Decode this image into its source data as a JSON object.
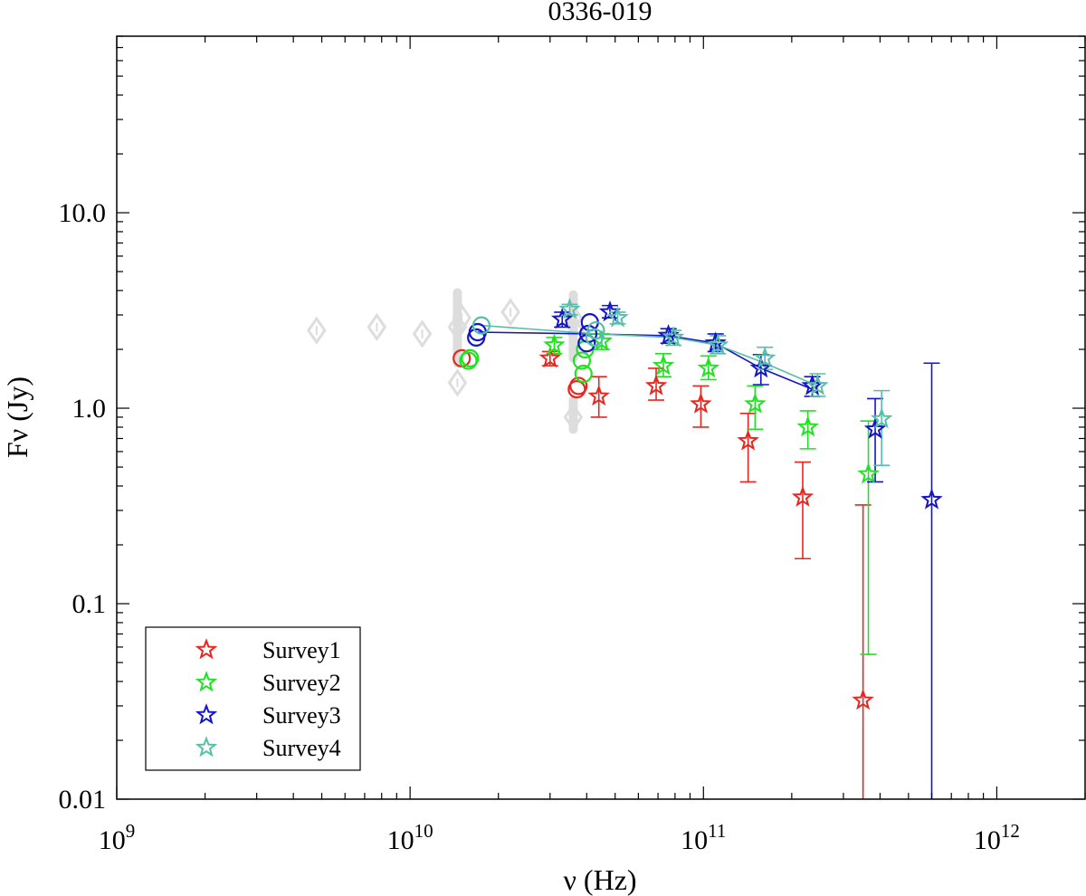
{
  "chart_data": {
    "type": "scatter",
    "title": "0336-019",
    "xlabel": "ν (Hz)",
    "ylabel": "Fν (Jy)",
    "x_scale": "log",
    "y_scale": "log",
    "xlim": [
      1000000000.0,
      2000000000000.0
    ],
    "ylim": [
      0.01,
      80
    ],
    "grid": false,
    "legend_position": "bottom-left",
    "x_ticks": [
      {
        "value": 1000000000.0,
        "base": "10",
        "exp": "9"
      },
      {
        "value": 10000000000.0,
        "base": "10",
        "exp": "10"
      },
      {
        "value": 100000000000.0,
        "base": "10",
        "exp": "11"
      },
      {
        "value": 1000000000000.0,
        "base": "10",
        "exp": "12"
      }
    ],
    "y_ticks": [
      {
        "value": 0.01,
        "label": "0.01"
      },
      {
        "value": 0.1,
        "label": "0.1"
      },
      {
        "value": 1,
        "label": "1.0"
      },
      {
        "value": 10,
        "label": "10.0"
      }
    ],
    "colors": {
      "survey1": "#e8261f",
      "survey2": "#22e022",
      "survey3": "#1414c8",
      "survey4": "#55bfaa",
      "archival": "#dddddd"
    },
    "archival": [
      {
        "x": 4800000000.0,
        "y": 2.5
      },
      {
        "x": 7700000000.0,
        "y": 2.6
      },
      {
        "x": 11000000000.0,
        "y": 2.4
      },
      {
        "x": 14500000000.0,
        "y": 2.6,
        "ylo": 1.7,
        "yhi": 3.9
      },
      {
        "x": 14500000000.0,
        "y": 1.35
      },
      {
        "x": 15000000000.0,
        "y": 2.9
      },
      {
        "x": 22000000000.0,
        "y": 3.1
      },
      {
        "x": 36000000000.0,
        "y": 2.9,
        "ylo": 1.8,
        "yhi": 3.8
      },
      {
        "x": 37000000000.0,
        "y": 2.4
      },
      {
        "x": 36000000000.0,
        "y": 0.9,
        "ylo": 0.78,
        "yhi": 1.1
      }
    ],
    "series": [
      {
        "name": "Survey1",
        "color_key": "survey1",
        "circles": [
          {
            "x": 15000000000.0,
            "y": 1.8
          },
          {
            "x": 37500000000.0,
            "y": 1.3
          },
          {
            "x": 37000000000.0,
            "y": 1.25
          }
        ],
        "stars": [
          {
            "x": 30000000000.0,
            "y": 1.8,
            "ylo": 1.65,
            "yhi": 1.95
          },
          {
            "x": 44000000000.0,
            "y": 1.15,
            "ylo": 0.9,
            "yhi": 1.45
          },
          {
            "x": 69000000000.0,
            "y": 1.3,
            "ylo": 1.1,
            "yhi": 1.6
          },
          {
            "x": 98000000000.0,
            "y": 1.05,
            "ylo": 0.8,
            "yhi": 1.3
          },
          {
            "x": 142000000000.0,
            "y": 0.68,
            "ylo": 0.42,
            "yhi": 0.94
          },
          {
            "x": 218000000000.0,
            "y": 0.35,
            "ylo": 0.17,
            "yhi": 0.53
          },
          {
            "x": 350000000000.0,
            "y": 0.032,
            "ylo": 0.01,
            "yhi": 0.32
          }
        ],
        "line": false
      },
      {
        "name": "Survey2",
        "color_key": "survey2",
        "circles": [
          {
            "x": 16000000000.0,
            "y": 1.8
          },
          {
            "x": 15800000000.0,
            "y": 1.75
          },
          {
            "x": 39000000000.0,
            "y": 1.5
          },
          {
            "x": 38500000000.0,
            "y": 1.75
          },
          {
            "x": 39500000000.0,
            "y": 2.0
          }
        ],
        "stars": [
          {
            "x": 31000000000.0,
            "y": 2.1,
            "ylo": 1.9,
            "yhi": 2.3
          },
          {
            "x": 45000000000.0,
            "y": 2.2,
            "ylo": 2.0,
            "yhi": 2.4
          },
          {
            "x": 73000000000.0,
            "y": 1.65,
            "ylo": 1.45,
            "yhi": 1.9
          },
          {
            "x": 104000000000.0,
            "y": 1.6,
            "ylo": 1.4,
            "yhi": 1.85
          },
          {
            "x": 150000000000.0,
            "y": 1.05,
            "ylo": 0.78,
            "yhi": 1.3
          },
          {
            "x": 227000000000.0,
            "y": 0.8,
            "ylo": 0.62,
            "yhi": 0.97
          },
          {
            "x": 365000000000.0,
            "y": 0.46,
            "ylo": 0.055,
            "yhi": 0.86
          }
        ],
        "line": false
      },
      {
        "name": "Survey3",
        "color_key": "survey3",
        "circles": [
          {
            "x": 17000000000.0,
            "y": 2.45
          },
          {
            "x": 16800000000.0,
            "y": 2.3
          },
          {
            "x": 41000000000.0,
            "y": 2.75
          },
          {
            "x": 40500000000.0,
            "y": 2.4
          },
          {
            "x": 40000000000.0,
            "y": 2.15
          }
        ],
        "stars": [
          {
            "x": 33000000000.0,
            "y": 2.85,
            "ylo": 2.6,
            "yhi": 3.1
          },
          {
            "x": 48000000000.0,
            "y": 3.1,
            "ylo": 2.9,
            "yhi": 3.35
          },
          {
            "x": 76000000000.0,
            "y": 2.35,
            "ylo": 2.15,
            "yhi": 2.55
          },
          {
            "x": 110000000000.0,
            "y": 2.15,
            "ylo": 1.95,
            "yhi": 2.4
          },
          {
            "x": 157000000000.0,
            "y": 1.6,
            "ylo": 1.32,
            "yhi": 1.88
          },
          {
            "x": 235000000000.0,
            "y": 1.3,
            "ylo": 1.15,
            "yhi": 1.45
          },
          {
            "x": 385000000000.0,
            "y": 0.78,
            "ylo": 0.42,
            "yhi": 1.12
          },
          {
            "x": 600000000000.0,
            "y": 0.34,
            "ylo": 0.01,
            "yhi": 1.7
          }
        ],
        "line": true,
        "line_points": [
          {
            "x": 17000000000.0,
            "y": 2.45
          },
          {
            "x": 40500000000.0,
            "y": 2.4
          },
          {
            "x": 76000000000.0,
            "y": 2.35
          },
          {
            "x": 110000000000.0,
            "y": 2.15
          },
          {
            "x": 157000000000.0,
            "y": 1.6
          },
          {
            "x": 235000000000.0,
            "y": 1.25
          }
        ]
      },
      {
        "name": "Survey4",
        "color_key": "survey4",
        "circles": [
          {
            "x": 17500000000.0,
            "y": 2.65
          },
          {
            "x": 43000000000.0,
            "y": 2.5
          },
          {
            "x": 42500000000.0,
            "y": 2.3
          }
        ],
        "stars": [
          {
            "x": 35000000000.0,
            "y": 3.2,
            "ylo": 3.0,
            "yhi": 3.4
          },
          {
            "x": 51000000000.0,
            "y": 2.9,
            "ylo": 2.7,
            "yhi": 3.1
          },
          {
            "x": 79000000000.0,
            "y": 2.3,
            "ylo": 2.1,
            "yhi": 2.5
          },
          {
            "x": 112000000000.0,
            "y": 2.1,
            "ylo": 1.9,
            "yhi": 2.35
          },
          {
            "x": 162000000000.0,
            "y": 1.8,
            "ylo": 1.58,
            "yhi": 2.05
          },
          {
            "x": 245000000000.0,
            "y": 1.3,
            "ylo": 1.15,
            "yhi": 1.5
          },
          {
            "x": 405000000000.0,
            "y": 0.88,
            "ylo": 0.51,
            "yhi": 1.23
          }
        ],
        "line": true,
        "line_points": [
          {
            "x": 17500000000.0,
            "y": 2.65
          },
          {
            "x": 43000000000.0,
            "y": 2.4
          },
          {
            "x": 79000000000.0,
            "y": 2.3
          },
          {
            "x": 112000000000.0,
            "y": 2.1
          },
          {
            "x": 162000000000.0,
            "y": 1.7
          },
          {
            "x": 245000000000.0,
            "y": 1.3
          }
        ]
      }
    ]
  }
}
